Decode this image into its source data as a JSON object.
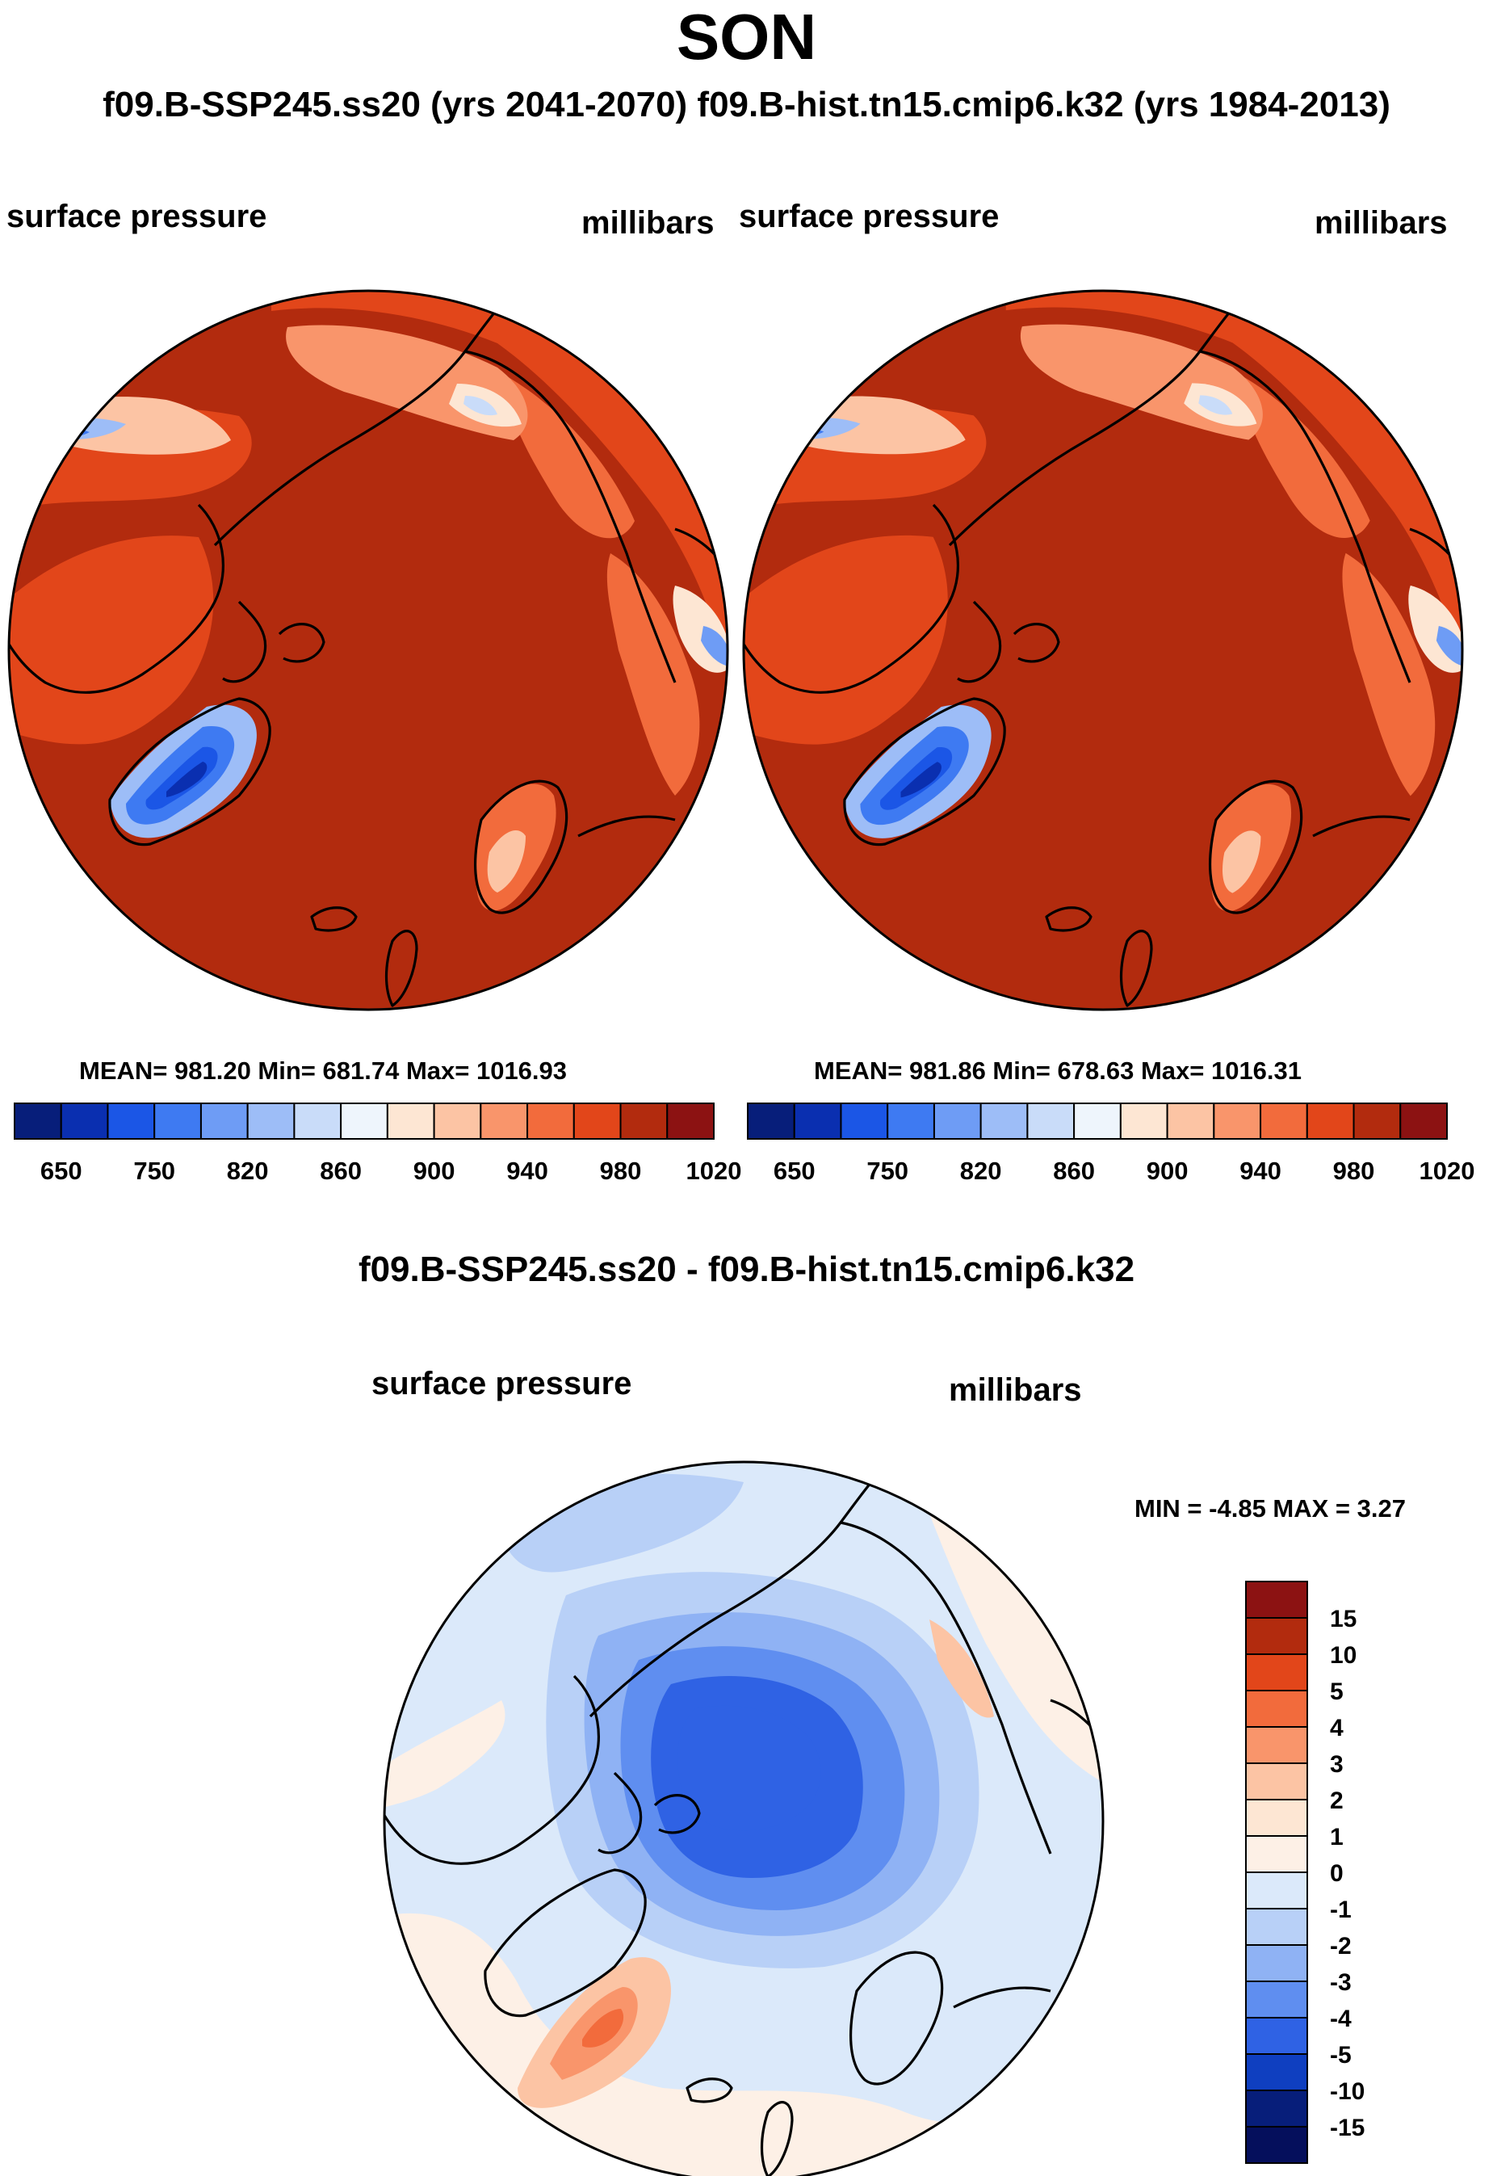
{
  "figure": {
    "title": "SON",
    "subtitle": "f09.B-SSP245.ss20 (yrs 2041-2070)  f09.B-hist.tn15.cmip6.k32 (yrs 1984-2013)",
    "diff_title": "f09.B-SSP245.ss20 - f09.B-hist.tn15.cmip6.k32"
  },
  "colors": {
    "ocean_high": "#b22b0e",
    "coastline": "#000000"
  },
  "chart_data": [
    {
      "type": "heatmap",
      "projection": "north polar stereographic",
      "case": "f09.B-SSP245.ss20 (yrs 2041-2070)",
      "left_label": "surface pressure",
      "right_label": "millibars",
      "stats_text": "MEAN= 981.20  Min= 681.74  Max= 1016.93",
      "mean": 981.2,
      "min": 681.74,
      "max": 1016.93,
      "colorbar": {
        "orientation": "horizontal",
        "tick_labels": [
          "650",
          "750",
          "820",
          "860",
          "900",
          "940",
          "980",
          "1020"
        ],
        "colors": [
          "#071e7a",
          "#0a2fb0",
          "#1b56e6",
          "#3e7af2",
          "#6e9cf5",
          "#9dbdf7",
          "#c9dcf9",
          "#eef5fc",
          "#fde6d3",
          "#fcc4a4",
          "#f9956b",
          "#f26b3c",
          "#e2461a",
          "#b22b0e",
          "#8c1212"
        ]
      }
    },
    {
      "type": "heatmap",
      "projection": "north polar stereographic",
      "case": "f09.B-hist.tn15.cmip6.k32 (yrs 1984-2013)",
      "left_label": "surface pressure",
      "right_label": "millibars",
      "stats_text": "MEAN= 981.86  Min= 678.63  Max= 1016.31",
      "mean": 981.86,
      "min": 678.63,
      "max": 1016.31,
      "colorbar": {
        "orientation": "horizontal",
        "tick_labels": [
          "650",
          "750",
          "820",
          "860",
          "900",
          "940",
          "980",
          "1020"
        ],
        "colors": [
          "#071e7a",
          "#0a2fb0",
          "#1b56e6",
          "#3e7af2",
          "#6e9cf5",
          "#9dbdf7",
          "#c9dcf9",
          "#eef5fc",
          "#fde6d3",
          "#fcc4a4",
          "#f9956b",
          "#f26b3c",
          "#e2461a",
          "#b22b0e",
          "#8c1212"
        ]
      }
    },
    {
      "type": "heatmap",
      "projection": "north polar stereographic",
      "case": "f09.B-SSP245.ss20 - f09.B-hist.tn15.cmip6.k32",
      "left_label": "surface pressure",
      "right_label": "millibars",
      "stats_text": "MIN =  -4.85 MAX =   3.27",
      "min": -4.85,
      "max": 3.27,
      "colorbar": {
        "orientation": "vertical",
        "tick_labels": [
          "15",
          "10",
          "5",
          "4",
          "3",
          "2",
          "1",
          "0",
          "-1",
          "-2",
          "-3",
          "-4",
          "-5",
          "-10",
          "-15"
        ],
        "colors": [
          "#8c1212",
          "#b22b0e",
          "#e2461a",
          "#f26b3c",
          "#f9956b",
          "#fcc4a4",
          "#fde6d3",
          "#fdf0e6",
          "#dbe9fa",
          "#b8d0f7",
          "#8fb2f4",
          "#5f8ef0",
          "#2f62e4",
          "#0f3fc0",
          "#071e7a",
          "#050f5c"
        ]
      }
    }
  ]
}
